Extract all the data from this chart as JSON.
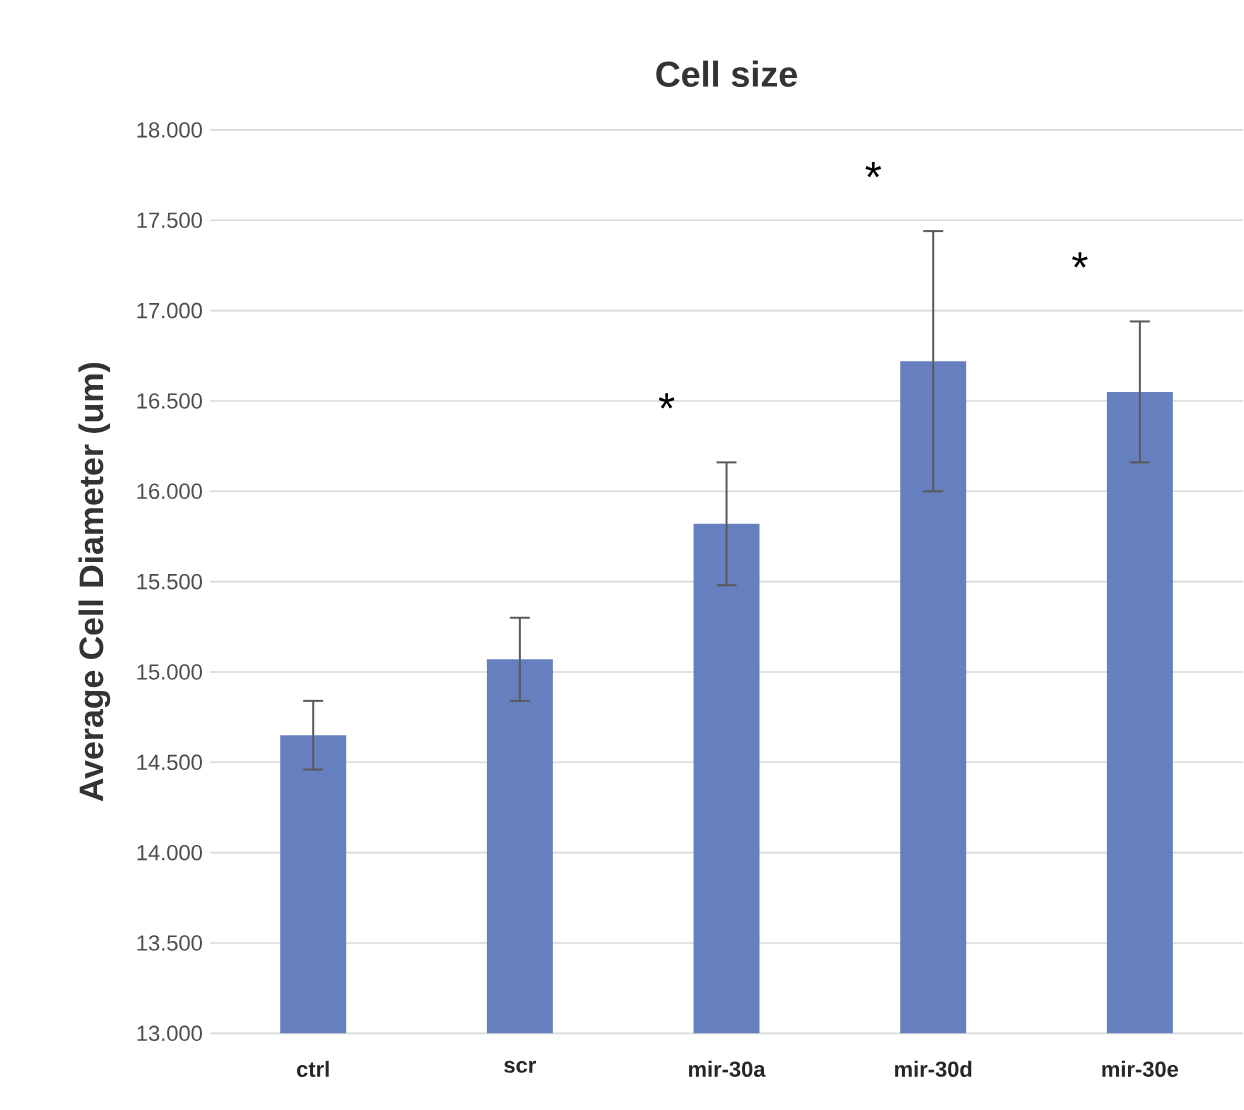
{
  "chart_data": {
    "type": "bar",
    "title": "Cell size",
    "ylabel": "Average Cell Diameter (um)",
    "categories": [
      "ctrl",
      "scr",
      "mir-30a",
      "mir-30d",
      "mir-30e"
    ],
    "values": [
      14.65,
      15.07,
      15.82,
      16.72,
      16.55
    ],
    "errors": [
      0.19,
      0.23,
      0.34,
      0.72,
      0.39
    ],
    "color": "#6680bf",
    "ylim": [
      13,
      18
    ],
    "yticks": [
      {
        "value": 13,
        "label": "13.000"
      },
      {
        "value": 13.5,
        "label": "13.500"
      },
      {
        "value": 14,
        "label": "14.000"
      },
      {
        "value": 14.5,
        "label": "14.500"
      },
      {
        "value": 15,
        "label": "15.000"
      },
      {
        "value": 15.5,
        "label": "15.500"
      },
      {
        "value": 16,
        "label": "16.000"
      },
      {
        "value": 16.5,
        "label": "16.500"
      },
      {
        "value": 17,
        "label": "17.000"
      },
      {
        "value": 17.5,
        "label": "17.500"
      },
      {
        "value": 18,
        "label": "18.000"
      }
    ],
    "grid": "y",
    "annotations": [
      "*",
      "*",
      "*"
    ]
  }
}
